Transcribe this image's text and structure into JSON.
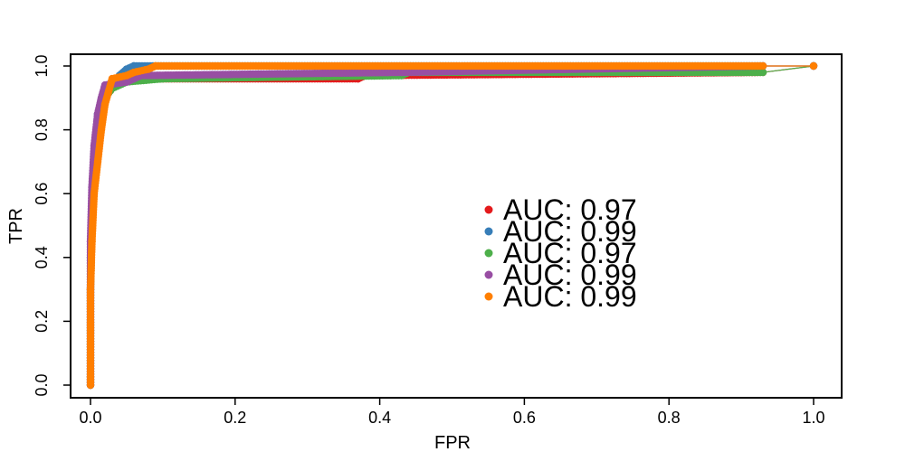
{
  "chart_data": {
    "type": "line",
    "title": "",
    "xlabel": "FPR",
    "ylabel": "TPR",
    "xlim": [
      0,
      1
    ],
    "ylim": [
      0,
      1
    ],
    "x_ticks": [
      "0.0",
      "0.2",
      "0.4",
      "0.6",
      "0.8",
      "1.0"
    ],
    "y_ticks": [
      "0.0",
      "0.2",
      "0.4",
      "0.6",
      "0.8",
      "1.0"
    ],
    "legend_position": "center-right",
    "grid": false,
    "series": [
      {
        "legend": "AUC: 0.97",
        "color": "#E41A1C",
        "points": [
          [
            0,
            0
          ],
          [
            0,
            0.3
          ],
          [
            0.002,
            0.5
          ],
          [
            0.005,
            0.65
          ],
          [
            0.01,
            0.75
          ],
          [
            0.015,
            0.85
          ],
          [
            0.02,
            0.9
          ],
          [
            0.03,
            0.93
          ],
          [
            0.04,
            0.95
          ],
          [
            0.06,
            0.96
          ],
          [
            0.37,
            0.96
          ],
          [
            0.38,
            0.97
          ],
          [
            0.93,
            0.98
          ],
          [
            1,
            1
          ]
        ]
      },
      {
        "legend": "AUC: 0.99",
        "color": "#377EB8",
        "points": [
          [
            0,
            0
          ],
          [
            0,
            0.4
          ],
          [
            0.003,
            0.6
          ],
          [
            0.006,
            0.75
          ],
          [
            0.01,
            0.85
          ],
          [
            0.02,
            0.9
          ],
          [
            0.03,
            0.94
          ],
          [
            0.04,
            0.97
          ],
          [
            0.05,
            0.99
          ],
          [
            0.06,
            1
          ],
          [
            0.93,
            1
          ],
          [
            1,
            1
          ]
        ]
      },
      {
        "legend": "AUC: 0.97",
        "color": "#4DAF4A",
        "points": [
          [
            0,
            0
          ],
          [
            0,
            0.3
          ],
          [
            0.002,
            0.5
          ],
          [
            0.006,
            0.65
          ],
          [
            0.01,
            0.75
          ],
          [
            0.015,
            0.85
          ],
          [
            0.02,
            0.9
          ],
          [
            0.03,
            0.93
          ],
          [
            0.05,
            0.95
          ],
          [
            0.1,
            0.96
          ],
          [
            0.43,
            0.97
          ],
          [
            0.44,
            0.98
          ],
          [
            0.93,
            0.98
          ],
          [
            1,
            1
          ]
        ]
      },
      {
        "legend": "AUC: 0.99",
        "color": "#984EA3",
        "points": [
          [
            0,
            0
          ],
          [
            0,
            0.45
          ],
          [
            0.002,
            0.62
          ],
          [
            0.005,
            0.75
          ],
          [
            0.01,
            0.85
          ],
          [
            0.015,
            0.9
          ],
          [
            0.02,
            0.94
          ],
          [
            0.05,
            0.95
          ],
          [
            0.06,
            0.96
          ],
          [
            0.07,
            0.97
          ],
          [
            0.43,
            0.98
          ],
          [
            0.93,
            1
          ],
          [
            1,
            1
          ]
        ]
      },
      {
        "legend": "AUC: 0.99",
        "color": "#FF7F00",
        "points": [
          [
            0,
            0
          ],
          [
            0,
            0.3
          ],
          [
            0.002,
            0.45
          ],
          [
            0.005,
            0.6
          ],
          [
            0.01,
            0.7
          ],
          [
            0.015,
            0.8
          ],
          [
            0.02,
            0.88
          ],
          [
            0.025,
            0.92
          ],
          [
            0.03,
            0.96
          ],
          [
            0.05,
            0.97
          ],
          [
            0.06,
            0.98
          ],
          [
            0.08,
            0.99
          ],
          [
            0.09,
            1
          ],
          [
            0.93,
            1
          ],
          [
            1,
            1
          ]
        ]
      }
    ]
  }
}
